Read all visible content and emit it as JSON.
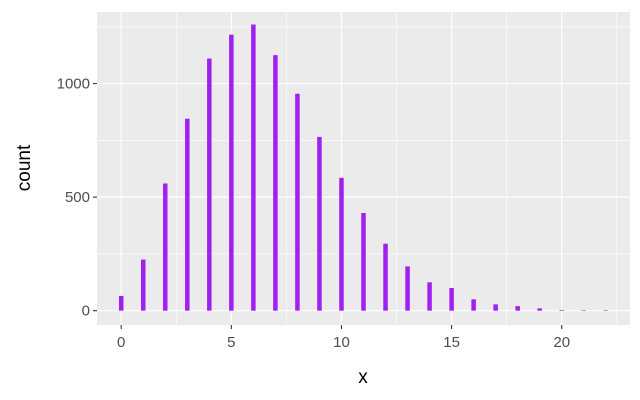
{
  "chart_data": {
    "type": "bar",
    "xlabel": "x",
    "ylabel": "count",
    "x": [
      0,
      1,
      2,
      3,
      4,
      5,
      6,
      7,
      8,
      9,
      10,
      11,
      12,
      13,
      14,
      15,
      16,
      17,
      18,
      19,
      20,
      21,
      22
    ],
    "values": [
      65,
      225,
      560,
      845,
      1110,
      1215,
      1260,
      1125,
      955,
      765,
      585,
      430,
      295,
      195,
      125,
      100,
      50,
      28,
      20,
      10,
      3,
      2,
      1
    ],
    "xlim": [
      -1.1,
      23.1
    ],
    "ylim": [
      -63,
      1315
    ],
    "x_ticks": [
      0,
      5,
      10,
      15,
      20
    ],
    "x_tick_labels": [
      "0",
      "5",
      "10",
      "15",
      "20"
    ],
    "y_ticks": [
      0,
      500,
      1000
    ],
    "y_tick_labels": [
      "0",
      "500",
      "1000"
    ],
    "grid": true,
    "legend": "none",
    "colors": {
      "bar": "#A020F0",
      "panel": "#EBEBEB",
      "grid": "#FFFFFF"
    }
  }
}
